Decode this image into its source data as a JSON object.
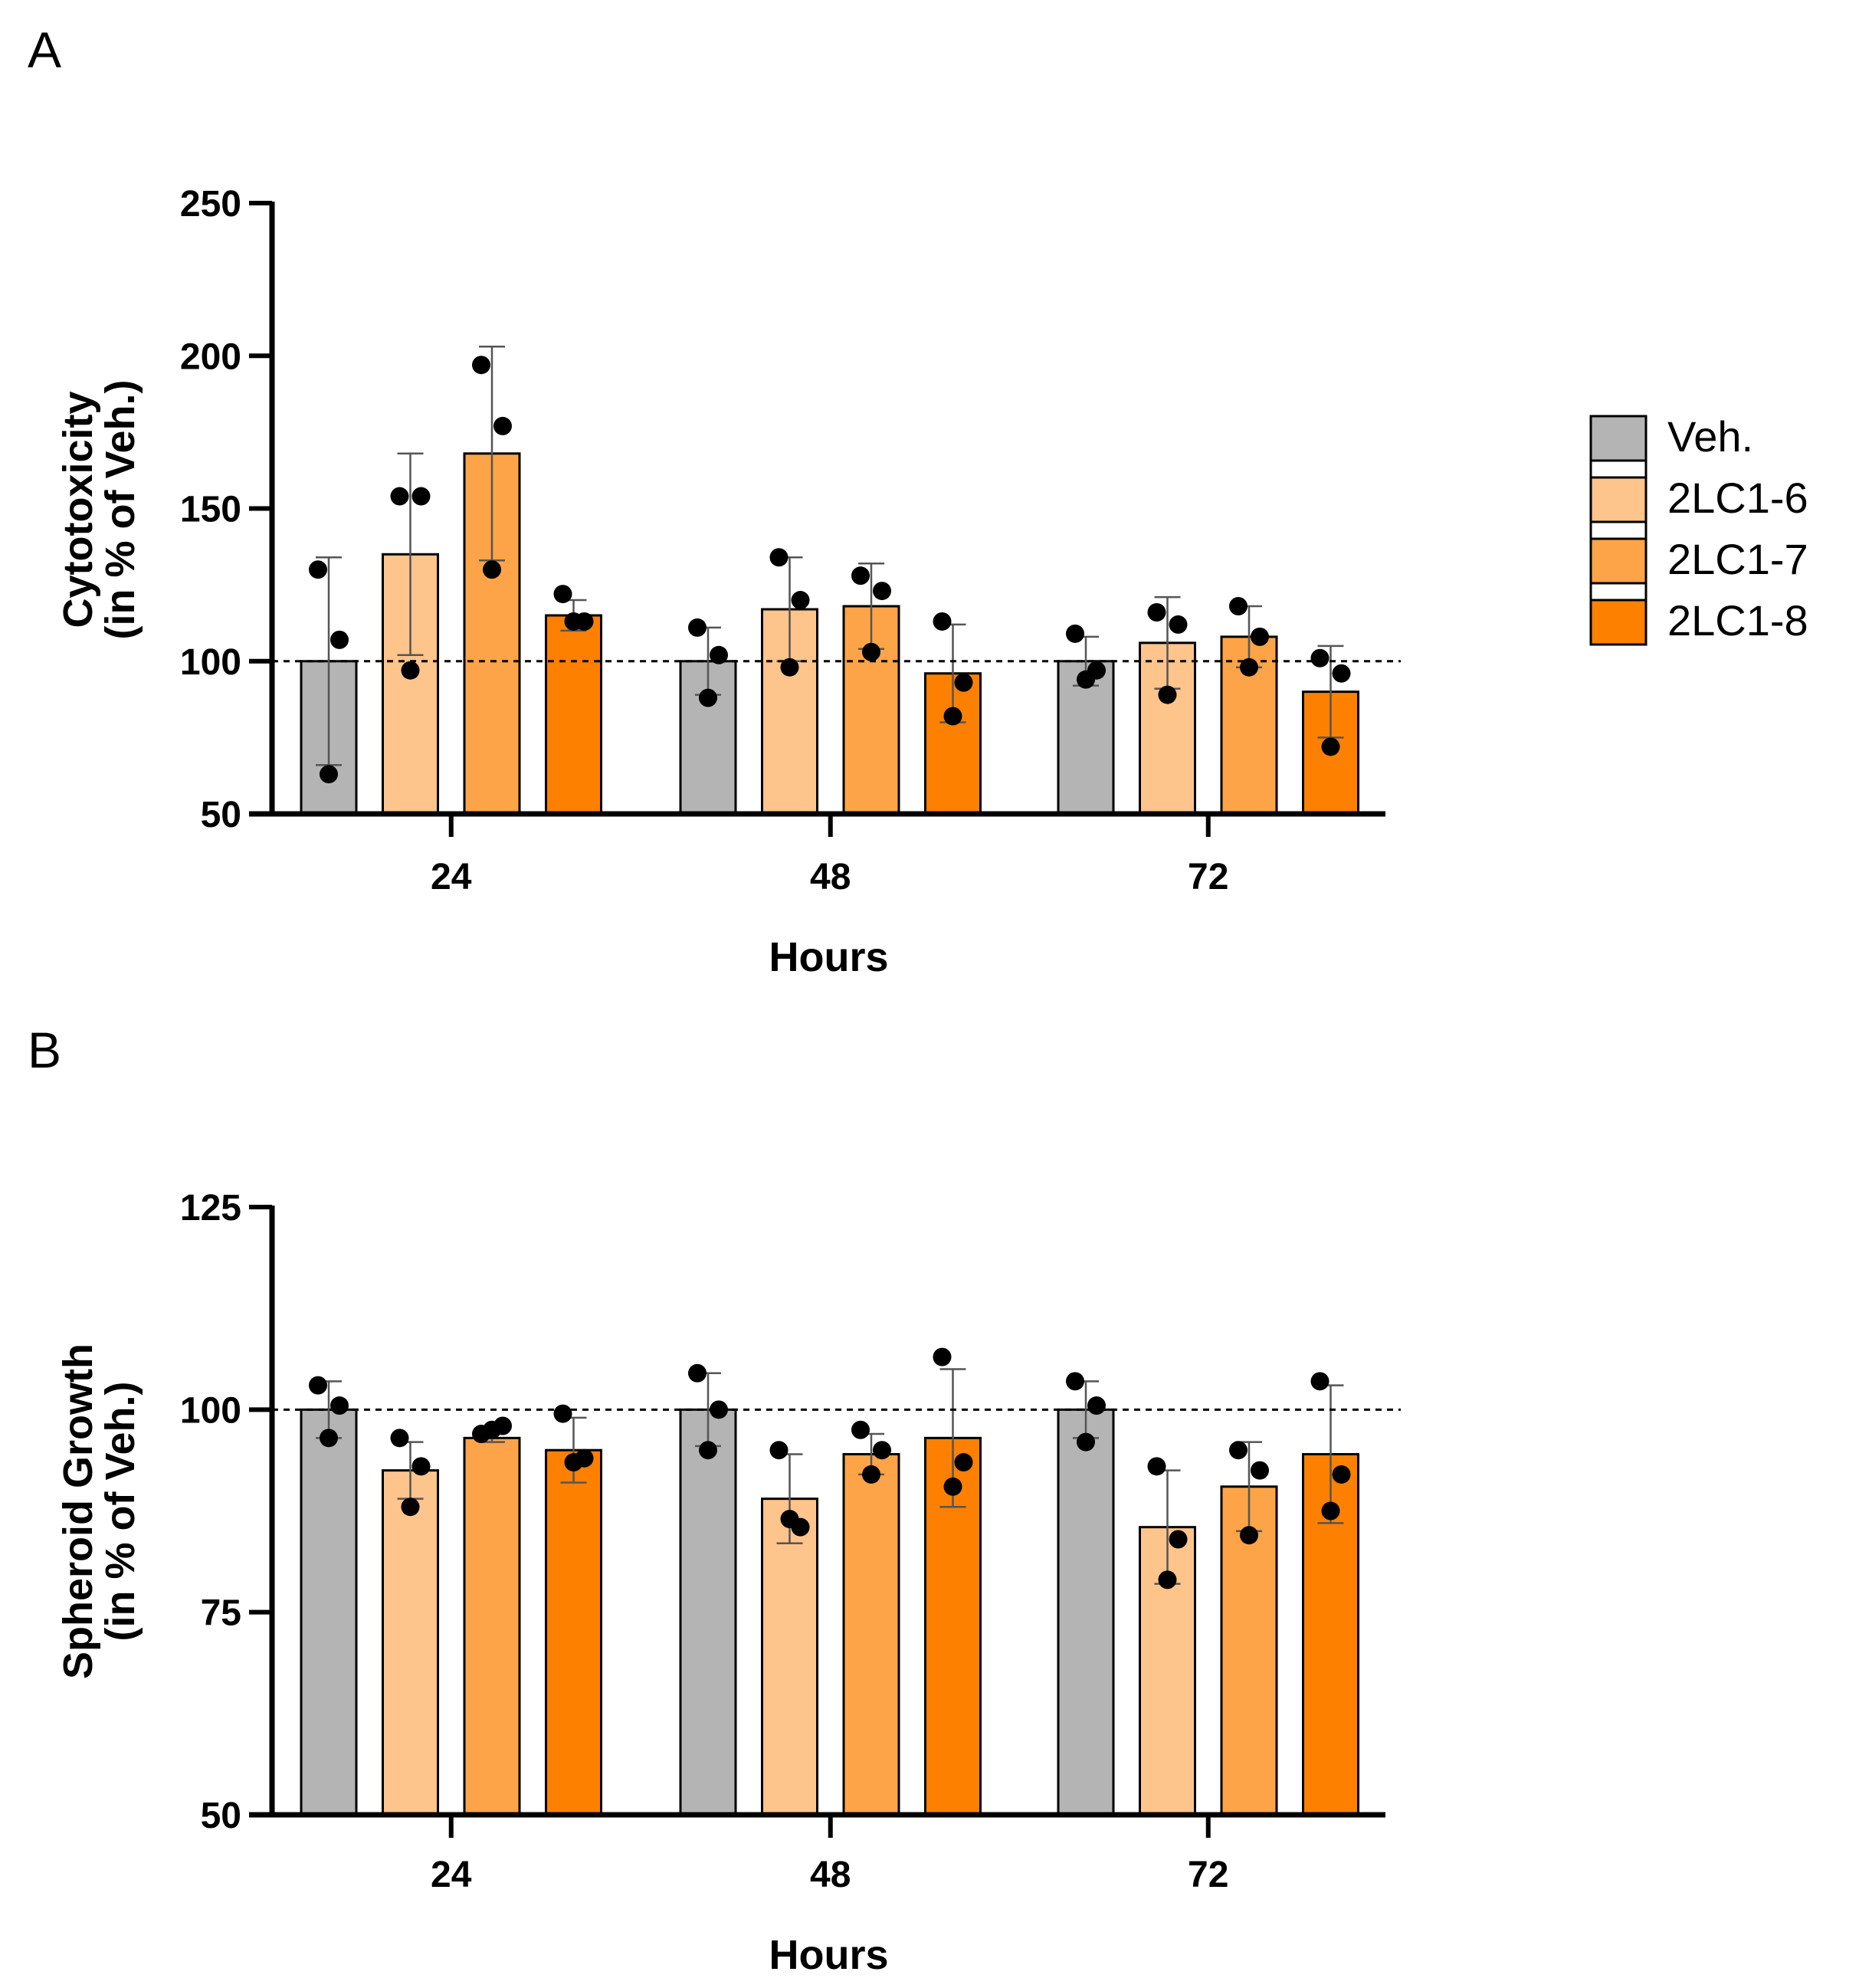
{
  "colors": {
    "Veh.": "#b4b4b4",
    "2LC1-6": "#fdc48c",
    "2LC1-7": "#fda448",
    "2LC1-8": "#fd8000"
  },
  "legend": [
    "Veh.",
    "2LC1-6",
    "2LC1-7",
    "2LC1-8"
  ],
  "chart_data": [
    {
      "panel": "A",
      "type": "bar",
      "title": "",
      "xlabel": "Hours",
      "ylabel_line1": "Cytotoxicity",
      "ylabel_line2": "(in % of Veh.)",
      "categories": [
        "24",
        "48",
        "72"
      ],
      "ylim": [
        50,
        250
      ],
      "yticks": [
        50,
        100,
        150,
        200,
        250
      ],
      "reference_line": 100,
      "series": [
        {
          "name": "Veh.",
          "values": [
            100,
            100,
            100
          ],
          "error": [
            34,
            11,
            8
          ],
          "points": [
            [
              130,
              107,
              63
            ],
            [
              111,
              102,
              88
            ],
            [
              109,
              97,
              94
            ]
          ]
        },
        {
          "name": "2LC1-6",
          "values": [
            135,
            117,
            106
          ],
          "error": [
            33,
            17,
            15
          ],
          "points": [
            [
              154,
              154,
              97
            ],
            [
              134,
              120,
              98
            ],
            [
              116,
              112,
              89
            ]
          ]
        },
        {
          "name": "2LC1-7",
          "values": [
            168,
            118,
            108
          ],
          "error": [
            35,
            14,
            10
          ],
          "points": [
            [
              197,
              177,
              130
            ],
            [
              128,
              123,
              103
            ],
            [
              118,
              108,
              98
            ]
          ]
        },
        {
          "name": "2LC1-8",
          "values": [
            115,
            96,
            90
          ],
          "error": [
            5,
            16,
            15
          ],
          "points": [
            [
              122,
              113,
              113
            ],
            [
              113,
              93,
              82
            ],
            [
              101,
              96,
              72
            ]
          ]
        }
      ]
    },
    {
      "panel": "B",
      "type": "bar",
      "title": "",
      "xlabel": "Hours",
      "ylabel_line1": "Spheroid Growth",
      "ylabel_line2": "(in % of Veh.)",
      "categories": [
        "24",
        "48",
        "72"
      ],
      "ylim": [
        50,
        125
      ],
      "yticks": [
        50,
        75,
        100,
        125
      ],
      "reference_line": 100,
      "series": [
        {
          "name": "Veh.",
          "values": [
            100,
            100,
            100
          ],
          "error": [
            3.5,
            4.5,
            3.5
          ],
          "points": [
            [
              103,
              100.5,
              96.5
            ],
            [
              104.5,
              100,
              95
            ],
            [
              103.5,
              100.5,
              96
            ]
          ]
        },
        {
          "name": "2LC1-6",
          "values": [
            92.5,
            89,
            85.5
          ],
          "error": [
            3.5,
            5.5,
            7
          ],
          "points": [
            [
              96.5,
              93,
              88
            ],
            [
              95,
              85.5,
              86.5
            ],
            [
              93,
              84,
              79
            ]
          ]
        },
        {
          "name": "2LC1-7",
          "values": [
            96.5,
            94.5,
            90.5
          ],
          "error": [
            0.5,
            2.5,
            5.5
          ],
          "points": [
            [
              97,
              98,
              97.5
            ],
            [
              97.5,
              95,
              92
            ],
            [
              95,
              92.5,
              84.5
            ]
          ]
        },
        {
          "name": "2LC1-8",
          "values": [
            95,
            96.5,
            94.5
          ],
          "error": [
            4,
            8.5,
            8.5
          ],
          "points": [
            [
              99.5,
              94,
              93.5
            ],
            [
              106.5,
              93.5,
              90.5
            ],
            [
              103.5,
              92,
              87.5
            ]
          ]
        }
      ]
    }
  ]
}
